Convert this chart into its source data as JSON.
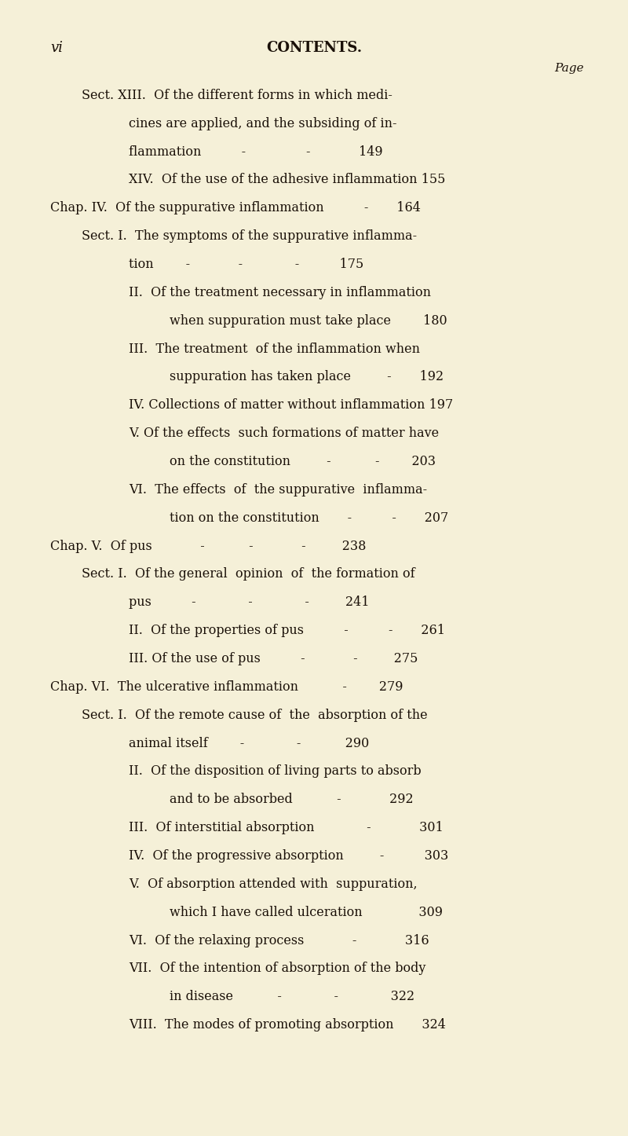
{
  "background_color": "#f5f0d8",
  "text_color": "#1a1008",
  "page_width": 8.0,
  "page_height": 14.46,
  "header_left": "vi",
  "header_center": "CONTENTS.",
  "page_label": "Page",
  "lines": [
    {
      "indent": 1,
      "text": "Sect. XIII.  Of the different forms in which medi-",
      "style": "normal"
    },
    {
      "indent": 2,
      "text": "cines are applied, and the subsiding of in-",
      "style": "normal"
    },
    {
      "indent": 2,
      "text": "flammation          -               -            149",
      "style": "normal"
    },
    {
      "indent": 2,
      "text": "XIV.  Of the use of the adhesive inflammation 155",
      "style": "normal"
    },
    {
      "indent": 0,
      "text": "Chap. IV.  Of the suppurative inflammation          -       164",
      "style": "chap"
    },
    {
      "indent": 1,
      "text": "Sect. I.  The symptoms of the suppurative inflamma-",
      "style": "normal"
    },
    {
      "indent": 2,
      "text": "tion        -            -             -          175",
      "style": "normal"
    },
    {
      "indent": 2,
      "text": "II.  Of the treatment necessary in inflammation",
      "style": "normal"
    },
    {
      "indent": 3,
      "text": "when suppuration must take place        180",
      "style": "normal"
    },
    {
      "indent": 2,
      "text": "III.  The treatment  of the inflammation when",
      "style": "normal"
    },
    {
      "indent": 3,
      "text": "suppuration has taken place         -       192",
      "style": "normal"
    },
    {
      "indent": 2,
      "text": "IV. Collections of matter without inflammation 197",
      "style": "normal"
    },
    {
      "indent": 2,
      "text": "V. Of the effects  such formations of matter have",
      "style": "normal"
    },
    {
      "indent": 3,
      "text": "on the constitution         -           -        203",
      "style": "normal"
    },
    {
      "indent": 2,
      "text": "VI.  The effects  of  the suppurative  inflamma-",
      "style": "normal"
    },
    {
      "indent": 3,
      "text": "tion on the constitution       -          -       207",
      "style": "normal"
    },
    {
      "indent": 0,
      "text": "Chap. V.  Of pus            -           -            -         238",
      "style": "chap"
    },
    {
      "indent": 1,
      "text": "Sect. I.  Of the general  opinion  of  the formation of",
      "style": "normal"
    },
    {
      "indent": 2,
      "text": "pus          -             -             -         241",
      "style": "normal"
    },
    {
      "indent": 2,
      "text": "II.  Of the properties of pus          -          -       261",
      "style": "normal"
    },
    {
      "indent": 2,
      "text": "III. Of the use of pus          -            -         275",
      "style": "normal"
    },
    {
      "indent": 0,
      "text": "Chap. VI.  The ulcerative inflammation           -        279",
      "style": "chap"
    },
    {
      "indent": 1,
      "text": "Sect. I.  Of the remote cause of  the  absorption of the",
      "style": "normal"
    },
    {
      "indent": 2,
      "text": "animal itself        -             -           290",
      "style": "normal"
    },
    {
      "indent": 2,
      "text": "II.  Of the disposition of living parts to absorb",
      "style": "normal"
    },
    {
      "indent": 3,
      "text": "and to be absorbed           -            292",
      "style": "normal"
    },
    {
      "indent": 2,
      "text": "III.  Of interstitial absorption             -            301",
      "style": "normal"
    },
    {
      "indent": 2,
      "text": "IV.  Of the progressive absorption         -          303",
      "style": "normal"
    },
    {
      "indent": 2,
      "text": "V.  Of absorption attended with  suppuration,",
      "style": "normal"
    },
    {
      "indent": 3,
      "text": "which I have called ulceration              309",
      "style": "normal"
    },
    {
      "indent": 2,
      "text": "VI.  Of the relaxing process            -            316",
      "style": "normal"
    },
    {
      "indent": 2,
      "text": "VII.  Of the intention of absorption of the body",
      "style": "normal"
    },
    {
      "indent": 3,
      "text": "in disease           -             -             322",
      "style": "normal"
    },
    {
      "indent": 2,
      "text": "VIII.  The modes of promoting absorption       324",
      "style": "normal"
    }
  ]
}
